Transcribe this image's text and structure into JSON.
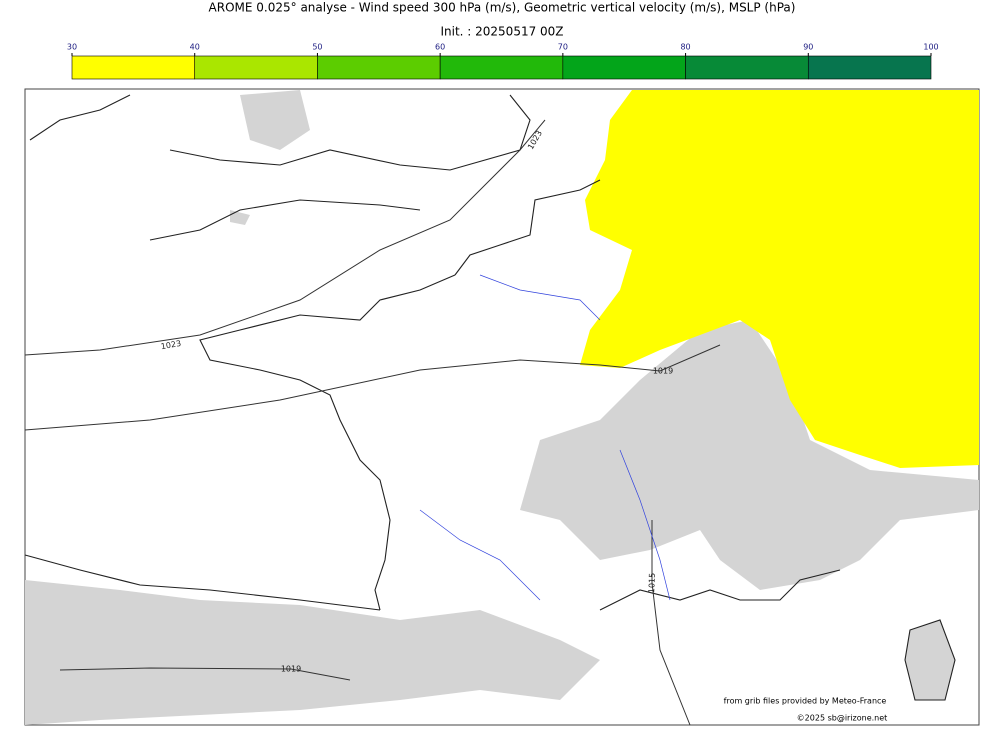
{
  "header": {
    "title": "AROME 0.025° analyse - Wind speed 300 hPa (m/s), Geometric vertical velocity (m/s), MSLP (hPa)",
    "subtitle": "Init. : 20250517 00Z"
  },
  "colorbar": {
    "ticks": [
      30,
      40,
      50,
      60,
      70,
      80,
      90,
      100
    ],
    "colors": [
      "#ffff00",
      "#aae600",
      "#5ccd00",
      "#22b90a",
      "#03a51a",
      "#078a37",
      "#07754e"
    ]
  },
  "contour_labels": [
    "1023",
    "1023",
    "1019",
    "1015",
    "1019"
  ],
  "credits": {
    "source": "from grib files provided by Meteo-France",
    "copyright": "©2025 sb@irizone.net"
  }
}
